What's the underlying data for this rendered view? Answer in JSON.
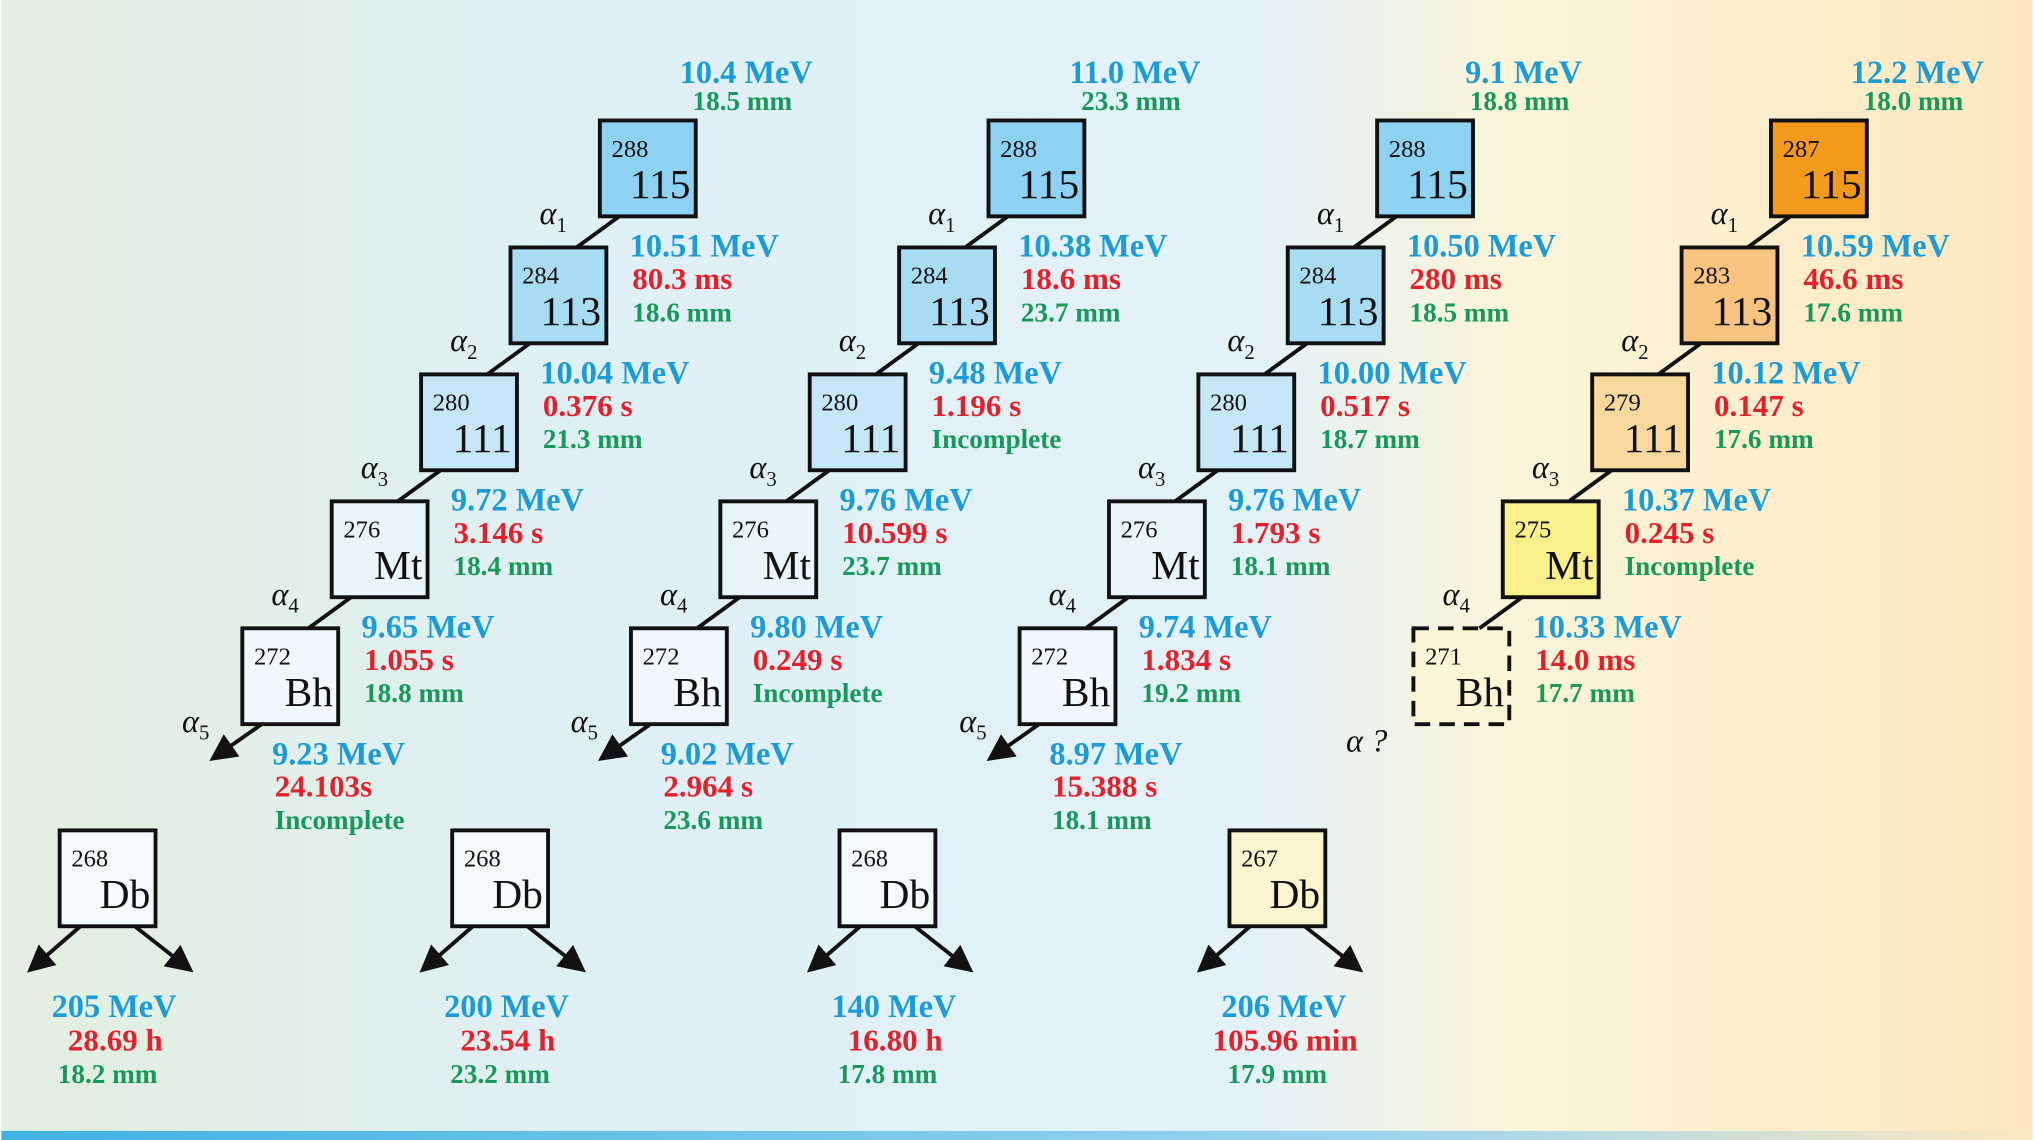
{
  "chains": [
    {
      "implant": {
        "energy": "10.4 MeV",
        "range": "18.5 mm"
      },
      "nuclides": [
        {
          "mass": "288",
          "symbol": "115"
        },
        {
          "mass": "284",
          "symbol": "113"
        },
        {
          "mass": "280",
          "symbol": "111"
        },
        {
          "mass": "276",
          "symbol": "Mt"
        },
        {
          "mass": "272",
          "symbol": "Bh"
        }
      ],
      "decays": [
        {
          "label": {
            "greek": "α",
            "index": "1"
          },
          "energy": "10.51 MeV",
          "time": "80.3 ms",
          "range": "18.6 mm"
        },
        {
          "label": {
            "greek": "α",
            "index": "2"
          },
          "energy": "10.04 MeV",
          "time": "0.376 s",
          "range": "21.3 mm"
        },
        {
          "label": {
            "greek": "α",
            "index": "3"
          },
          "energy": "9.72 MeV",
          "time": "3.146 s",
          "range": "18.4 mm"
        },
        {
          "label": {
            "greek": "α",
            "index": "4"
          },
          "energy": "9.65 MeV",
          "time": "1.055 s",
          "range": "18.8 mm"
        },
        {
          "label": {
            "greek": "α",
            "index": "5"
          },
          "energy": "9.23 MeV",
          "time": "24.103s",
          "range": "Incomplete"
        }
      ],
      "fission": {
        "mass": "268",
        "symbol": "Db",
        "energy": "205 MeV",
        "time": "28.69 h",
        "range": "18.2 mm"
      }
    },
    {
      "implant": {
        "energy": "11.0 MeV",
        "range": "23.3 mm"
      },
      "nuclides": [
        {
          "mass": "288",
          "symbol": "115"
        },
        {
          "mass": "284",
          "symbol": "113"
        },
        {
          "mass": "280",
          "symbol": "111"
        },
        {
          "mass": "276",
          "symbol": "Mt"
        },
        {
          "mass": "272",
          "symbol": "Bh"
        }
      ],
      "decays": [
        {
          "label": {
            "greek": "α",
            "index": "1"
          },
          "energy": "10.38 MeV",
          "time": "18.6 ms",
          "range": "23.7 mm"
        },
        {
          "label": {
            "greek": "α",
            "index": "2"
          },
          "energy": "9.48 MeV",
          "time": "1.196 s",
          "range": "Incomplete"
        },
        {
          "label": {
            "greek": "α",
            "index": "3"
          },
          "energy": "9.76 MeV",
          "time": "10.599 s",
          "range": "23.7 mm"
        },
        {
          "label": {
            "greek": "α",
            "index": "4"
          },
          "energy": "9.80 MeV",
          "time": "0.249 s",
          "range": "Incomplete"
        },
        {
          "label": {
            "greek": "α",
            "index": "5"
          },
          "energy": "9.02 MeV",
          "time": "2.964 s",
          "range": "23.6 mm"
        }
      ],
      "fission": {
        "mass": "268",
        "symbol": "Db",
        "energy": "200 MeV",
        "time": "23.54 h",
        "range": "23.2 mm"
      }
    },
    {
      "implant": {
        "energy": "9.1 MeV",
        "range": "18.8 mm"
      },
      "nuclides": [
        {
          "mass": "288",
          "symbol": "115"
        },
        {
          "mass": "284",
          "symbol": "113"
        },
        {
          "mass": "280",
          "symbol": "111"
        },
        {
          "mass": "276",
          "symbol": "Mt"
        },
        {
          "mass": "272",
          "symbol": "Bh"
        }
      ],
      "decays": [
        {
          "label": {
            "greek": "α",
            "index": "1"
          },
          "energy": "10.50 MeV",
          "time": "280 ms",
          "range": "18.5 mm"
        },
        {
          "label": {
            "greek": "α",
            "index": "2"
          },
          "energy": "10.00 MeV",
          "time": "0.517 s",
          "range": "18.7 mm"
        },
        {
          "label": {
            "greek": "α",
            "index": "3"
          },
          "energy": "9.76 MeV",
          "time": "1.793 s",
          "range": "18.1 mm"
        },
        {
          "label": {
            "greek": "α",
            "index": "4"
          },
          "energy": "9.74 MeV",
          "time": "1.834 s",
          "range": "19.2 mm"
        },
        {
          "label": {
            "greek": "α",
            "index": "5"
          },
          "energy": "8.97 MeV",
          "time": "15.388 s",
          "range": "18.1 mm"
        }
      ],
      "fission": {
        "mass": "268",
        "symbol": "Db",
        "energy": "140 MeV",
        "time": "16.80 h",
        "range": "17.8 mm"
      }
    },
    {
      "implant": {
        "energy": "12.2 MeV",
        "range": "18.0 mm"
      },
      "nuclides": [
        {
          "mass": "287",
          "symbol": "115"
        },
        {
          "mass": "283",
          "symbol": "113"
        },
        {
          "mass": "279",
          "symbol": "111"
        },
        {
          "mass": "275",
          "symbol": "Mt"
        },
        {
          "mass": "271",
          "symbol": "Bh"
        }
      ],
      "decays": [
        {
          "label": {
            "greek": "α",
            "index": "1"
          },
          "energy": "10.59 MeV",
          "time": "46.6 ms",
          "range": "17.6 mm"
        },
        {
          "label": {
            "greek": "α",
            "index": "2"
          },
          "energy": "10.12 MeV",
          "time": "0.147 s",
          "range": "17.6 mm"
        },
        {
          "label": {
            "greek": "α",
            "index": "3"
          },
          "energy": "10.37 MeV",
          "time": "0.245 s",
          "range": "Incomplete"
        },
        {
          "label": {
            "greek": "α",
            "index": "4"
          },
          "energy": "10.33 MeV",
          "time": "14.0 ms",
          "range": "17.7 mm"
        }
      ],
      "unobserved": "α ?",
      "fission": {
        "mass": "267",
        "symbol": "Db",
        "energy": "206 MeV",
        "time": "105.96 min",
        "range": "17.9 mm"
      }
    }
  ]
}
